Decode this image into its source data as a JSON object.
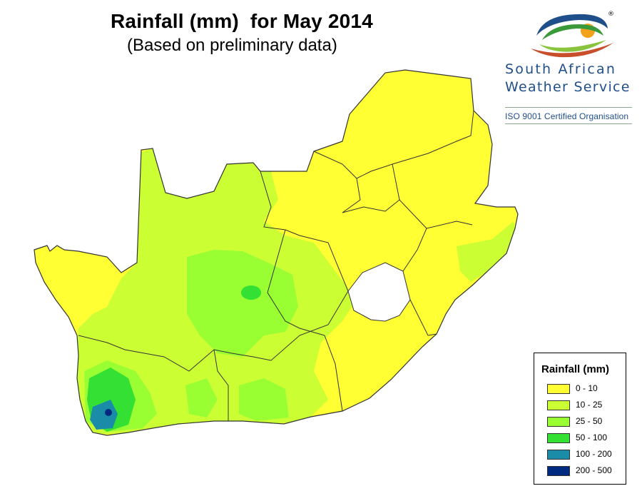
{
  "header": {
    "title": "Rainfall (mm)  for May 2014",
    "subtitle": "(Based on preliminary data)"
  },
  "logo": {
    "line1": "South African",
    "line2": "Weather Service",
    "certification": "ISO 9001 Certified Organisation",
    "registered_mark": "®"
  },
  "legend": {
    "title": "Rainfall (mm)",
    "items": [
      {
        "label": "0 - 10",
        "color": "#ffff33"
      },
      {
        "label": "10 - 25",
        "color": "#ccff33"
      },
      {
        "label": "25 - 50",
        "color": "#99ff33"
      },
      {
        "label": "50 - 100",
        "color": "#33e033"
      },
      {
        "label": "100 - 200",
        "color": "#1a8ca8"
      },
      {
        "label": "200 - 500",
        "color": "#002a80"
      }
    ]
  },
  "colors": {
    "border": "#333333",
    "logo_blue": "#1f4f8a",
    "logo_green": "#3a9a3a",
    "logo_orange": "#f5a21b"
  }
}
